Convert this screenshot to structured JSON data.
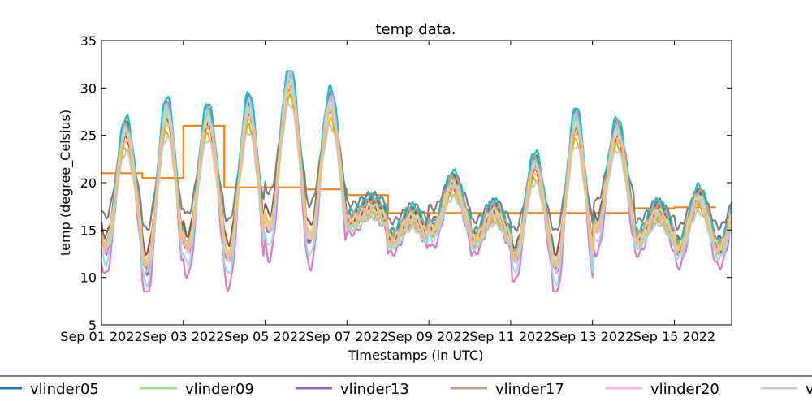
{
  "chart_data": {
    "type": "line",
    "title": "temp data.",
    "xlabel": "Timestamps (in UTC)",
    "ylabel": "temp (degree_Celsius)",
    "ylim": [
      5,
      35
    ],
    "yticks": [
      5,
      10,
      15,
      20,
      25,
      30,
      35
    ],
    "xlim": [
      0,
      15.4
    ],
    "xticks": [
      {
        "pos": 0,
        "label": "Sep 01 2022"
      },
      {
        "pos": 2,
        "label": "Sep 03 2022"
      },
      {
        "pos": 4,
        "label": "Sep 05 2022"
      },
      {
        "pos": 6,
        "label": "Sep 07 2022"
      },
      {
        "pos": 8,
        "label": "Sep 09 2022"
      },
      {
        "pos": 10,
        "label": "Sep 11 2022"
      },
      {
        "pos": 12,
        "label": "Sep 13 2022"
      },
      {
        "pos": 14,
        "label": "Sep 15 2022"
      }
    ],
    "grid": false,
    "legend_position": "bottom",
    "legend": [
      {
        "label": "vlinder05",
        "color": "#1f77b4"
      },
      {
        "label": "vlinder09",
        "color": "#98df8a"
      },
      {
        "label": "vlinder13",
        "color": "#9467bd"
      },
      {
        "label": "vlinder17",
        "color": "#c49c94"
      },
      {
        "label": "vlinder20",
        "color": "#f7b6d2"
      },
      {
        "label": "vlinder",
        "color": "#c7c7c7"
      }
    ],
    "daily_peaks": [
      25.5,
      27.5,
      27,
      28,
      31,
      28.5,
      17.5,
      16.5,
      20,
      17,
      22,
      26.5,
      25.5,
      17,
      18.5
    ],
    "daily_troughs": [
      13,
      11,
      13,
      12,
      15,
      14,
      16,
      14,
      15,
      14,
      12,
      11,
      15,
      14,
      13
    ],
    "series": [
      {
        "color": "#1f77b4",
        "offset": 0.0,
        "amp": 1.0
      },
      {
        "color": "#ff7f0e",
        "offset": 0.0,
        "amp": 0.0,
        "step": [
          21,
          20.5,
          26,
          19.5,
          19.5,
          19.3,
          18.7,
          16.8,
          16.8,
          16.8,
          16.8,
          16.8,
          16.8,
          17.3,
          17.4
        ]
      },
      {
        "color": "#2ca02c",
        "offset": 0.5,
        "amp": 1.05
      },
      {
        "color": "#d62728",
        "offset": -0.4,
        "amp": 0.95
      },
      {
        "color": "#9467bd",
        "offset": 0.3,
        "amp": 1.1
      },
      {
        "color": "#8c564b",
        "offset": 0.8,
        "amp": 0.9
      },
      {
        "color": "#e377c2",
        "offset": -1.2,
        "amp": 1.25
      },
      {
        "color": "#7f7f7f",
        "offset": 1.5,
        "amp": 0.7
      },
      {
        "color": "#bcbd22",
        "offset": -0.8,
        "amp": 0.85
      },
      {
        "color": "#17becf",
        "offset": 1.0,
        "amp": 1.08
      },
      {
        "color": "#98df8a",
        "offset": 0.2,
        "amp": 1.0
      },
      {
        "color": "#c49c94",
        "offset": 0.6,
        "amp": 1.02
      },
      {
        "color": "#f7b6d2",
        "offset": -0.2,
        "amp": 1.0
      },
      {
        "color": "#c7c7c7",
        "offset": -1.0,
        "amp": 0.8
      },
      {
        "color": "#dbdb8d",
        "offset": 0.1,
        "amp": 0.95
      },
      {
        "color": "#9edae5",
        "offset": -0.6,
        "amp": 1.15
      },
      {
        "color": "#ffbb78",
        "offset": -0.3,
        "amp": 0.9
      }
    ]
  }
}
